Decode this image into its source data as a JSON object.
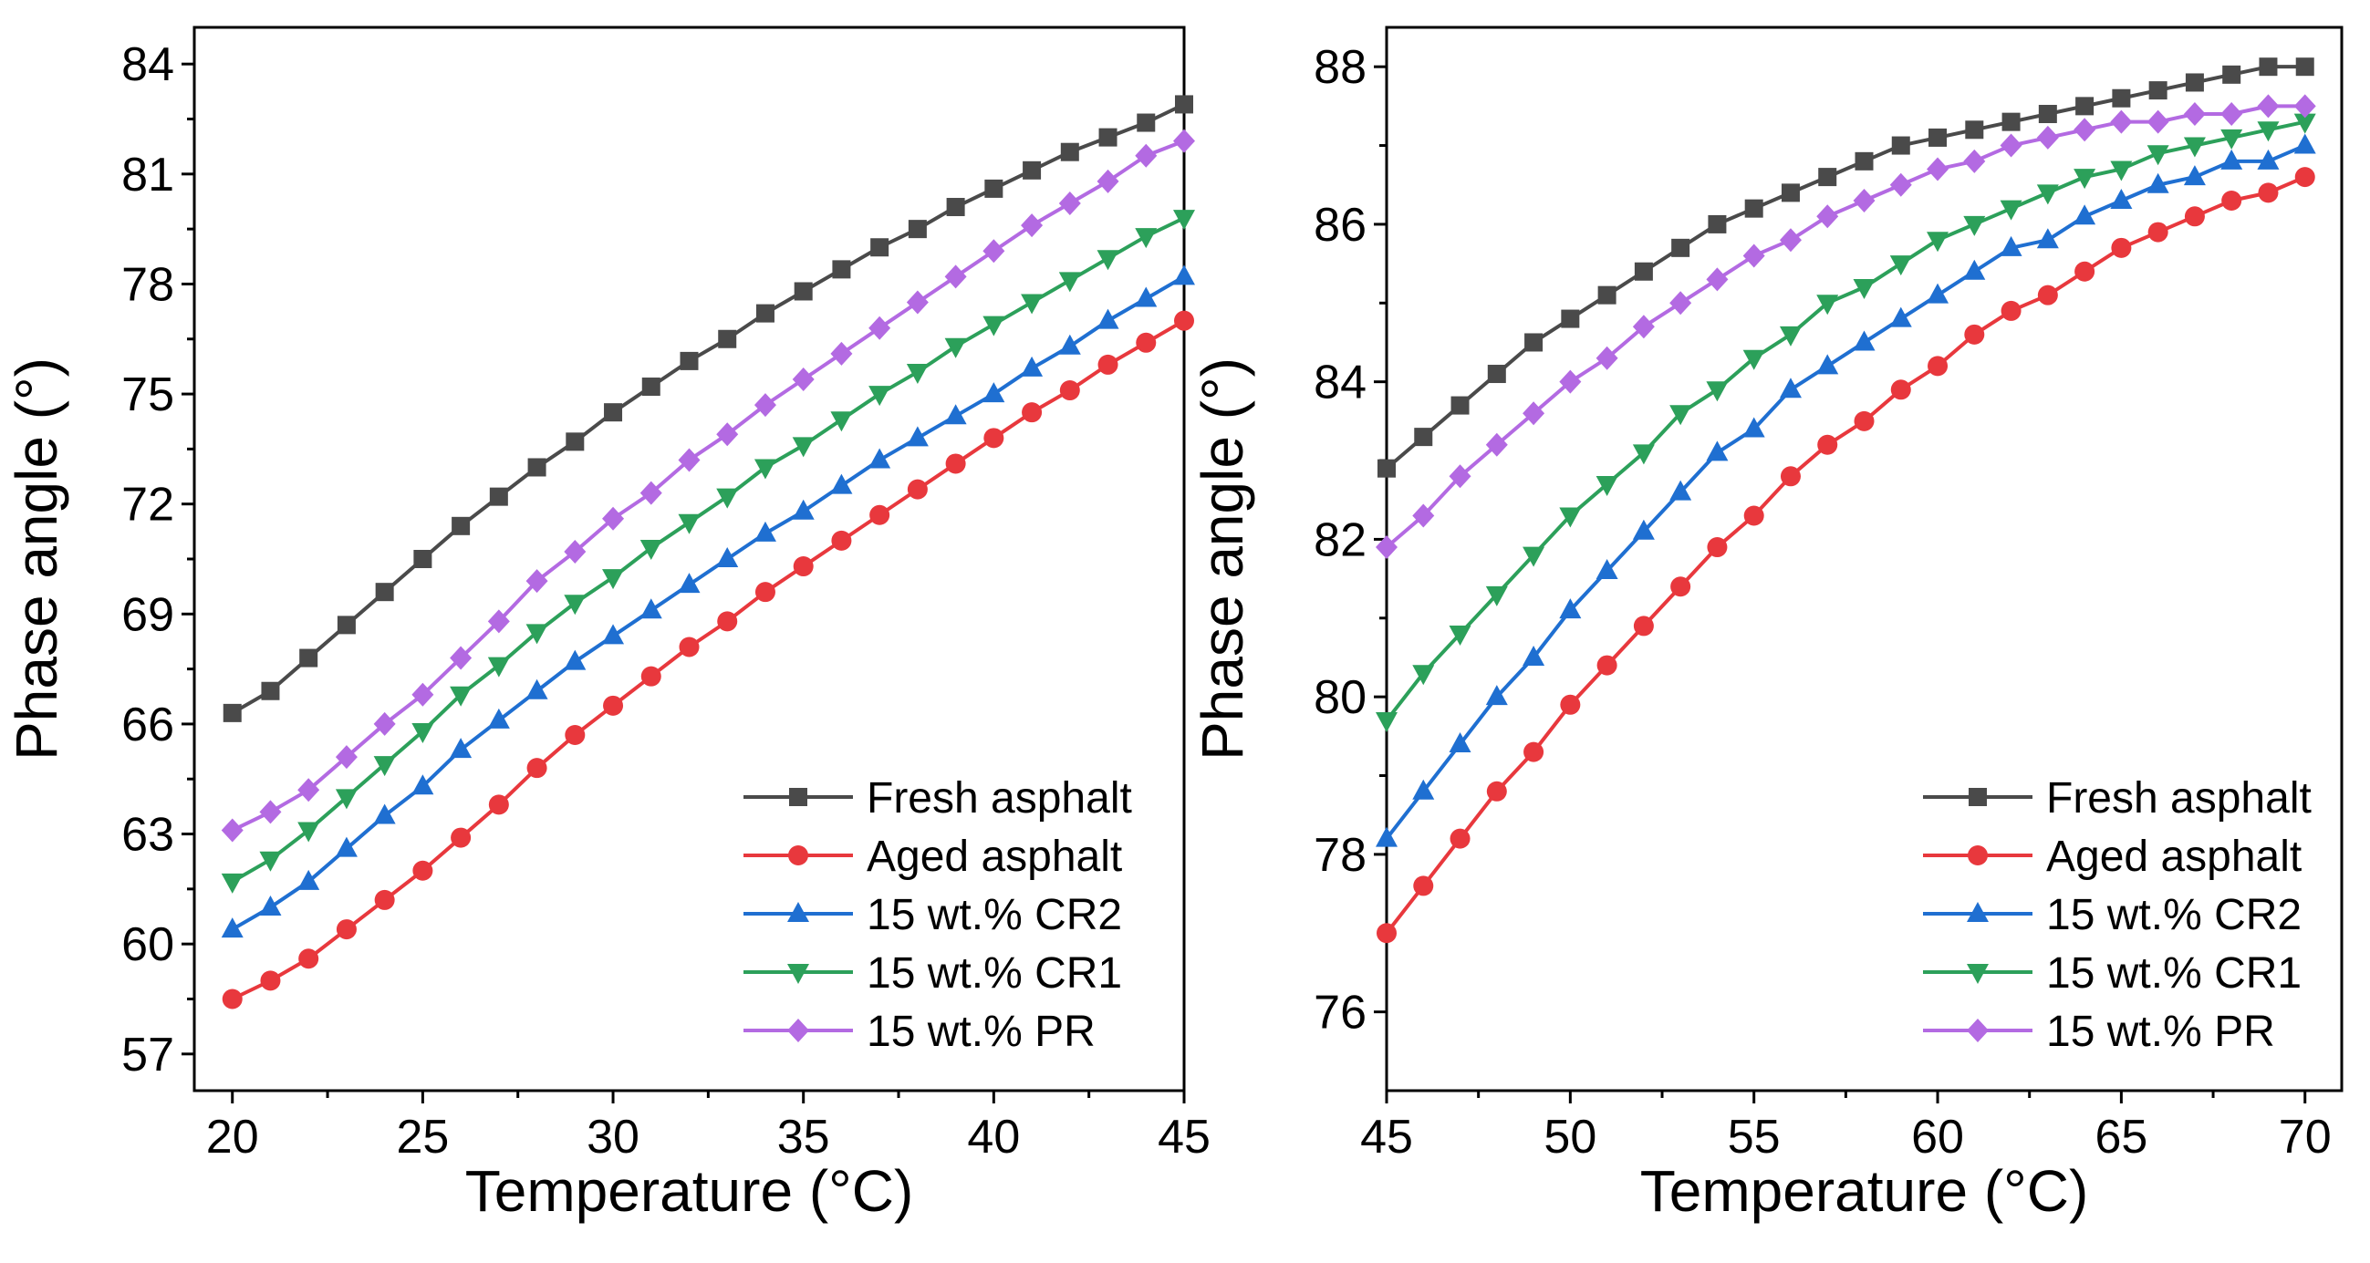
{
  "chart_data": [
    {
      "type": "line",
      "title": "",
      "xlabel": "Temperature (°C)",
      "ylabel": "Phase angle (°)",
      "xlim": [
        19,
        45
      ],
      "ylim": [
        56,
        85
      ],
      "xticks": [
        20,
        25,
        30,
        35,
        40,
        45
      ],
      "yticks": [
        57,
        60,
        63,
        66,
        69,
        72,
        75,
        78,
        81,
        84
      ],
      "grid": false,
      "legend_position": "bottom-right",
      "x": [
        20,
        21,
        22,
        23,
        24,
        25,
        26,
        27,
        28,
        29,
        30,
        31,
        32,
        33,
        34,
        35,
        36,
        37,
        38,
        39,
        40,
        41,
        42,
        43,
        44,
        45
      ],
      "series": [
        {
          "name": "Fresh asphalt",
          "color": "#4a4a4a",
          "marker": "square",
          "values": [
            66.3,
            66.9,
            67.8,
            68.7,
            69.6,
            70.5,
            71.4,
            72.2,
            73.0,
            73.7,
            74.5,
            75.2,
            75.9,
            76.5,
            77.2,
            77.8,
            78.4,
            79.0,
            79.5,
            80.1,
            80.6,
            81.1,
            81.6,
            82.0,
            82.4,
            82.9
          ]
        },
        {
          "name": "Aged asphalt",
          "color": "#e8383d",
          "marker": "circle",
          "values": [
            58.5,
            59.0,
            59.6,
            60.4,
            61.2,
            62.0,
            62.9,
            63.8,
            64.8,
            65.7,
            66.5,
            67.3,
            68.1,
            68.8,
            69.6,
            70.3,
            71.0,
            71.7,
            72.4,
            73.1,
            73.8,
            74.5,
            75.1,
            75.8,
            76.4,
            77.0
          ]
        },
        {
          "name": "15 wt.% CR2",
          "color": "#1f6fd1",
          "marker": "triangle-up",
          "values": [
            60.4,
            61.0,
            61.7,
            62.6,
            63.5,
            64.3,
            65.3,
            66.1,
            66.9,
            67.7,
            68.4,
            69.1,
            69.8,
            70.5,
            71.2,
            71.8,
            72.5,
            73.2,
            73.8,
            74.4,
            75.0,
            75.7,
            76.3,
            77.0,
            77.6,
            78.2
          ]
        },
        {
          "name": "15 wt.% CR1",
          "color": "#2ca05a",
          "marker": "triangle-down",
          "values": [
            61.7,
            62.3,
            63.1,
            64.0,
            64.9,
            65.8,
            66.8,
            67.6,
            68.5,
            69.3,
            70.0,
            70.8,
            71.5,
            72.2,
            73.0,
            73.6,
            74.3,
            75.0,
            75.6,
            76.3,
            76.9,
            77.5,
            78.1,
            78.7,
            79.3,
            79.8
          ]
        },
        {
          "name": "15 wt.% PR",
          "color": "#b36ae2",
          "marker": "diamond",
          "values": [
            63.1,
            63.6,
            64.2,
            65.1,
            66.0,
            66.8,
            67.8,
            68.8,
            69.9,
            70.7,
            71.6,
            72.3,
            73.2,
            73.9,
            74.7,
            75.4,
            76.1,
            76.8,
            77.5,
            78.2,
            78.9,
            79.6,
            80.2,
            80.8,
            81.5,
            81.9
          ]
        }
      ]
    },
    {
      "type": "line",
      "title": "",
      "xlabel": "Temperature (°C)",
      "ylabel": "Phase angle (°)",
      "xlim": [
        45,
        71
      ],
      "ylim": [
        75,
        88.5
      ],
      "xticks": [
        45,
        50,
        55,
        60,
        65,
        70
      ],
      "yticks": [
        76,
        78,
        80,
        82,
        84,
        86,
        88
      ],
      "grid": false,
      "legend_position": "bottom-right",
      "x": [
        45,
        46,
        47,
        48,
        49,
        50,
        51,
        52,
        53,
        54,
        55,
        56,
        57,
        58,
        59,
        60,
        61,
        62,
        63,
        64,
        65,
        66,
        67,
        68,
        69,
        70
      ],
      "series": [
        {
          "name": "Fresh asphalt",
          "color": "#4a4a4a",
          "marker": "square",
          "values": [
            82.9,
            83.3,
            83.7,
            84.1,
            84.5,
            84.8,
            85.1,
            85.4,
            85.7,
            86.0,
            86.2,
            86.4,
            86.6,
            86.8,
            87.0,
            87.1,
            87.2,
            87.3,
            87.4,
            87.5,
            87.6,
            87.7,
            87.8,
            87.9,
            88.0,
            88.0
          ]
        },
        {
          "name": "Aged asphalt",
          "color": "#e8383d",
          "marker": "circle",
          "values": [
            77.0,
            77.6,
            78.2,
            78.8,
            79.3,
            79.9,
            80.4,
            80.9,
            81.4,
            81.9,
            82.3,
            82.8,
            83.2,
            83.5,
            83.9,
            84.2,
            84.6,
            84.9,
            85.1,
            85.4,
            85.7,
            85.9,
            86.1,
            86.3,
            86.4,
            86.6
          ]
        },
        {
          "name": "15 wt.% CR2",
          "color": "#1f6fd1",
          "marker": "triangle-up",
          "values": [
            78.2,
            78.8,
            79.4,
            80.0,
            80.5,
            81.1,
            81.6,
            82.1,
            82.6,
            83.1,
            83.4,
            83.9,
            84.2,
            84.5,
            84.8,
            85.1,
            85.4,
            85.7,
            85.8,
            86.1,
            86.3,
            86.5,
            86.6,
            86.8,
            86.8,
            87.0
          ]
        },
        {
          "name": "15 wt.% CR1",
          "color": "#2ca05a",
          "marker": "triangle-down",
          "values": [
            79.7,
            80.3,
            80.8,
            81.3,
            81.8,
            82.3,
            82.7,
            83.1,
            83.6,
            83.9,
            84.3,
            84.6,
            85.0,
            85.2,
            85.5,
            85.8,
            86.0,
            86.2,
            86.4,
            86.6,
            86.7,
            86.9,
            87.0,
            87.1,
            87.2,
            87.3
          ]
        },
        {
          "name": "15 wt.% PR",
          "color": "#b36ae2",
          "marker": "diamond",
          "values": [
            81.9,
            82.3,
            82.8,
            83.2,
            83.6,
            84.0,
            84.3,
            84.7,
            85.0,
            85.3,
            85.6,
            85.8,
            86.1,
            86.3,
            86.5,
            86.7,
            86.8,
            87.0,
            87.1,
            87.2,
            87.3,
            87.3,
            87.4,
            87.4,
            87.5,
            87.5
          ]
        }
      ]
    }
  ]
}
